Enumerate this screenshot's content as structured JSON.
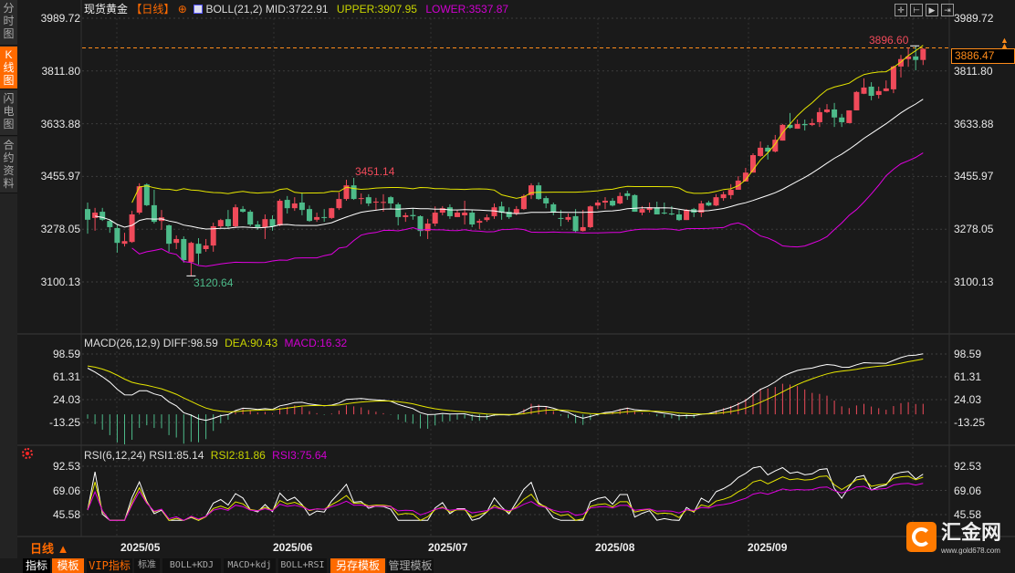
{
  "sidebar": {
    "tabs": [
      {
        "label": "分时图",
        "active": false
      },
      {
        "label": "K线图",
        "active": true
      },
      {
        "label": "闪电图",
        "active": false
      },
      {
        "label": "合约资料",
        "active": false
      }
    ]
  },
  "header": {
    "instrument": "现货黄金",
    "period": "【日线】",
    "indicator": "BOLL(21,2)",
    "mid": "MID:3722.91",
    "upper": "UPPER:3907.95",
    "lower": "LOWER:3537.87",
    "tool_icons": [
      "crosshair-icon",
      "fit-icon",
      "play-icon",
      "move-right-icon"
    ]
  },
  "macd_legend": {
    "name": "MACD(26,12,9)",
    "diff": "DIFF:98.59",
    "dea": "DEA:90.43",
    "macd": "MACD:16.32"
  },
  "rsi_legend": {
    "name": "RSI(6,12,24)",
    "rsi1": "RSI1:85.14",
    "rsi2": "RSI2:81.86",
    "rsi3": "RSI3:75.64"
  },
  "price_tag": "3886.47",
  "bottom": {
    "period": "日线 ▲",
    "buttons": [
      "指标",
      "模板",
      "VIP指标",
      "标准",
      "BOLL+KDJ",
      "MACD+kdj",
      "BOLL+RSI",
      "另存模板",
      "管理模板"
    ]
  },
  "logo": {
    "name": "汇金网",
    "url": "www.gold678.com"
  },
  "colors": {
    "up": "#f04a5a",
    "down": "#4dbb8a",
    "mid": "#ffffff",
    "upper": "#e6e600",
    "lower": "#e000e0",
    "accent": "#ff6a00"
  },
  "chart_data": [
    {
      "type": "candlestick",
      "title": "现货黄金 日线",
      "ylim": [
        3100.13,
        3989.72
      ],
      "y_ticks": [
        "3989.72",
        "3811.80",
        "3633.88",
        "3455.97",
        "3278.05",
        "3100.13"
      ],
      "x_ticks": [
        "2025/05",
        "2025/06",
        "2025/07",
        "2025/08",
        "2025/09"
      ],
      "annotations": {
        "high": "3896.60",
        "mid_high": "3451.14",
        "low": "3120.64"
      },
      "last_price": 3886.47,
      "ohlc": [
        [
          3346,
          3368,
          3263,
          3310
        ],
        [
          3316,
          3350,
          3273,
          3334
        ],
        [
          3337,
          3350,
          3306,
          3310
        ],
        [
          3306,
          3312,
          3266,
          3285
        ],
        [
          3282,
          3294,
          3199,
          3232
        ],
        [
          3229,
          3266,
          3220,
          3238
        ],
        [
          3235,
          3340,
          3232,
          3328
        ],
        [
          3334,
          3433,
          3328,
          3423
        ],
        [
          3429,
          3433,
          3356,
          3359
        ],
        [
          3359,
          3411,
          3297,
          3303
        ],
        [
          3306,
          3343,
          3276,
          3318
        ],
        [
          3291,
          3294,
          3202,
          3229
        ],
        [
          3232,
          3257,
          3211,
          3245
        ],
        [
          3245,
          3254,
          3165,
          3174
        ],
        [
          3167,
          3236,
          3120.64,
          3232
        ],
        [
          3229,
          3248,
          3159,
          3196
        ],
        [
          3211,
          3245,
          3202,
          3223
        ],
        [
          3223,
          3300,
          3202,
          3288
        ],
        [
          3288,
          3313,
          3282,
          3309
        ],
        [
          3312,
          3343,
          3282,
          3288
        ],
        [
          3288,
          3362,
          3282,
          3352
        ],
        [
          3346,
          3356,
          3334,
          3337
        ],
        [
          3337,
          3343,
          3288,
          3294
        ],
        [
          3294,
          3306,
          3276,
          3285
        ],
        [
          3285,
          3328,
          3245,
          3312
        ],
        [
          3312,
          3325,
          3273,
          3288
        ],
        [
          3291,
          3380,
          3288,
          3374
        ],
        [
          3377,
          3390,
          3331,
          3349
        ],
        [
          3349,
          3386,
          3340,
          3365
        ],
        [
          3368,
          3402,
          3325,
          3343
        ],
        [
          3346,
          3358,
          3303,
          3306
        ],
        [
          3310,
          3334,
          3303,
          3319
        ],
        [
          3319,
          3346,
          3303,
          3316
        ],
        [
          3316,
          3350,
          3313,
          3349
        ],
        [
          3349,
          3402,
          3343,
          3380
        ],
        [
          3380,
          3445,
          3374,
          3426
        ],
        [
          3426,
          3451.14,
          3377,
          3380
        ],
        [
          3380,
          3399,
          3362,
          3383
        ],
        [
          3386,
          3396,
          3356,
          3365
        ],
        [
          3368,
          3384,
          3343,
          3371
        ],
        [
          3368,
          3396,
          3337,
          3370
        ],
        [
          3386,
          3390,
          3346,
          3365
        ],
        [
          3362,
          3368,
          3291,
          3319
        ],
        [
          3319,
          3334,
          3303,
          3325
        ],
        [
          3326,
          3346,
          3310,
          3322
        ],
        [
          3322,
          3325,
          3254,
          3272
        ],
        [
          3272,
          3313,
          3245,
          3297
        ],
        [
          3297,
          3355,
          3288,
          3334
        ],
        [
          3334,
          3356,
          3325,
          3349
        ],
        [
          3352,
          3362,
          3313,
          3322
        ],
        [
          3319,
          3343,
          3319,
          3334
        ],
        [
          3325,
          3374,
          3294,
          3334
        ],
        [
          3334,
          3343,
          3285,
          3294
        ],
        [
          3300,
          3313,
          3279,
          3306
        ],
        [
          3309,
          3328,
          3303,
          3318
        ],
        [
          3322,
          3365,
          3313,
          3352
        ],
        [
          3355,
          3371,
          3310,
          3334
        ],
        [
          3337,
          3352,
          3313,
          3319
        ],
        [
          3331,
          3356,
          3325,
          3346
        ],
        [
          3346,
          3396,
          3343,
          3390
        ],
        [
          3393,
          3433,
          3380,
          3426
        ],
        [
          3426,
          3436,
          3377,
          3380
        ],
        [
          3383,
          3390,
          3349,
          3365
        ],
        [
          3362,
          3368,
          3325,
          3334
        ],
        [
          3316,
          3343,
          3288,
          3313
        ],
        [
          3310,
          3331,
          3303,
          3319
        ],
        [
          3322,
          3346,
          3266,
          3272
        ],
        [
          3272,
          3343,
          3270,
          3285
        ],
        [
          3285,
          3358,
          3282,
          3355
        ],
        [
          3358,
          3377,
          3346,
          3368
        ],
        [
          3368,
          3386,
          3346,
          3374
        ],
        [
          3374,
          3383,
          3355,
          3358
        ],
        [
          3365,
          3402,
          3362,
          3390
        ],
        [
          3399,
          3408,
          3377,
          3390
        ],
        [
          3393,
          3396,
          3337,
          3337
        ],
        [
          3334,
          3356,
          3325,
          3346
        ],
        [
          3343,
          3368,
          3334,
          3352
        ],
        [
          3352,
          3371,
          3328,
          3328
        ],
        [
          3334,
          3368,
          3328,
          3331
        ],
        [
          3331,
          3356,
          3325,
          3328
        ],
        [
          3328,
          3343,
          3306,
          3309
        ],
        [
          3309,
          3346,
          3309,
          3343
        ],
        [
          3346,
          3350,
          3319,
          3334
        ],
        [
          3334,
          3374,
          3319,
          3365
        ],
        [
          3368,
          3374,
          3356,
          3358
        ],
        [
          3358,
          3396,
          3356,
          3386
        ],
        [
          3383,
          3405,
          3374,
          3396
        ],
        [
          3393,
          3430,
          3380,
          3411
        ],
        [
          3411,
          3457,
          3411,
          3442
        ],
        [
          3439,
          3485,
          3439,
          3469
        ],
        [
          3469,
          3534,
          3469,
          3528
        ],
        [
          3525,
          3574,
          3522,
          3553
        ],
        [
          3553,
          3562,
          3513,
          3540
        ],
        [
          3540,
          3596,
          3537,
          3580
        ],
        [
          3577,
          3633,
          3577,
          3630
        ],
        [
          3630,
          3670,
          3617,
          3620
        ],
        [
          3617,
          3648,
          3617,
          3633
        ],
        [
          3633,
          3648,
          3611,
          3629
        ],
        [
          3630,
          3651,
          3626,
          3636
        ],
        [
          3639,
          3688,
          3623,
          3673
        ],
        [
          3673,
          3700,
          3670,
          3682
        ],
        [
          3682,
          3704,
          3623,
          3655
        ],
        [
          3655,
          3667,
          3623,
          3639
        ],
        [
          3636,
          3679,
          3636,
          3679
        ],
        [
          3679,
          3744,
          3679,
          3741
        ],
        [
          3735,
          3787,
          3734,
          3756
        ],
        [
          3759,
          3774,
          3713,
          3728
        ],
        [
          3731,
          3759,
          3719,
          3744
        ],
        [
          3744,
          3780,
          3743,
          3753
        ],
        [
          3750,
          3830,
          3737,
          3827
        ],
        [
          3827,
          3866,
          3790,
          3852
        ],
        [
          3852,
          3891,
          3826,
          3861
        ],
        [
          3861,
          3896.6,
          3814,
          3849
        ],
        [
          3849,
          3888,
          3832,
          3886.47
        ]
      ],
      "overlay": "BOLL(21,2)"
    },
    {
      "type": "macd",
      "y_ticks": [
        "98.59",
        "61.31",
        "24.03",
        "-13.25"
      ],
      "ylim": [
        -13.25,
        98.59
      ],
      "last": {
        "diff": 98.59,
        "dea": 90.43,
        "macd": 16.32
      }
    },
    {
      "type": "rsi",
      "y_ticks": [
        "92.53",
        "69.06",
        "45.58"
      ],
      "ylim": [
        45.58,
        92.53
      ],
      "last": {
        "rsi1": 85.14,
        "rsi2": 81.86,
        "rsi3": 75.64
      }
    }
  ]
}
